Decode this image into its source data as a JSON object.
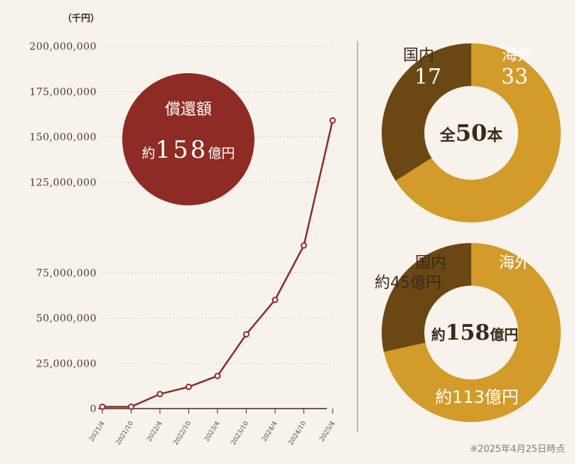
{
  "unit_label": "（千円）",
  "footnote": "※2025年4月25日時点",
  "colors": {
    "background": "#f7f3ec",
    "line": "#8e2b24",
    "domestic": "#6b4813",
    "overseas": "#d29b2a",
    "grid": "#cfc6b6"
  },
  "chart_data": [
    {
      "type": "line",
      "x": [
        "2021/4",
        "2021/10",
        "2022/4",
        "2022/10",
        "2023/4",
        "2023/10",
        "2024/4",
        "2024/10",
        "2025/4"
      ],
      "y_ticks": [
        0,
        25000000,
        50000000,
        75000000,
        125000000,
        150000000,
        175000000,
        200000000
      ],
      "y_tick_labels": [
        "0",
        "25,000,000",
        "50,000,000",
        "75,000,000",
        "125,000,000",
        "150,000,000",
        "175,000,000",
        "200,000,000"
      ],
      "ylim": [
        0,
        200000000
      ],
      "series": [
        {
          "values": [
            1000000,
            1000000,
            8000000,
            12000000,
            18000000,
            41000000,
            60000000,
            90000000,
            159000000
          ]
        }
      ],
      "grid": true,
      "callout": {
        "title": "償還額",
        "prefix": "約",
        "value": "158",
        "suffix": "億円"
      }
    },
    {
      "type": "pie",
      "labels": [
        "国内",
        "海外"
      ],
      "values": [
        17,
        33
      ],
      "value_labels": [
        "17",
        "33"
      ],
      "center": {
        "prefix": "全",
        "value": "50",
        "suffix": "本"
      }
    },
    {
      "type": "pie",
      "labels": [
        "国内",
        "海外"
      ],
      "values": [
        45,
        113
      ],
      "value_labels": [
        "約45億円",
        "約113億円"
      ],
      "center": {
        "prefix": "約",
        "value": "158",
        "suffix": "億円"
      }
    }
  ]
}
